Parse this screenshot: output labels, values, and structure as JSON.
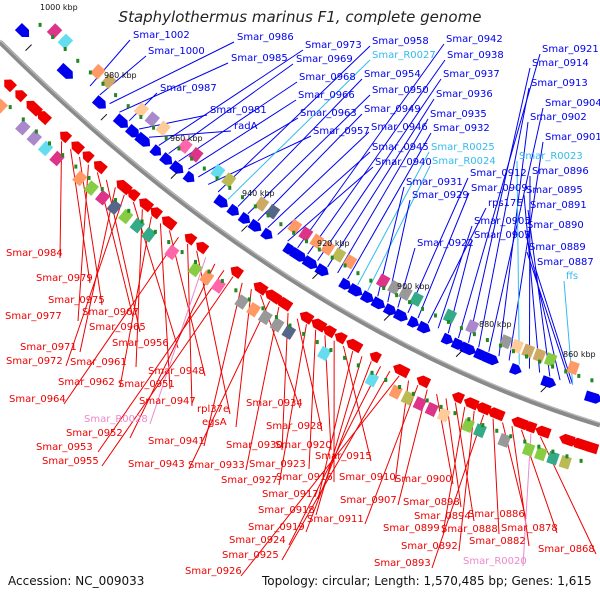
{
  "title": "Staphylothermus marinus F1, complete genome",
  "footer": {
    "accession": "Accession: NC_009033",
    "topology": "Topology: circular; Length: 1,570,485 bp; Genes: 1,615"
  },
  "colors": {
    "forward_cds": "#0000ee",
    "reverse_cds": "#ee0000",
    "forward_rna": "#33bbee",
    "reverse_rna": "#ee88cc",
    "backbone": "#808080",
    "tick": "#228822"
  },
  "scale_labels": [
    "1000 kbp",
    "980 kbp",
    "960 kbp",
    "940 kbp",
    "920 kbp",
    "900 kbp",
    "880 kbp",
    "860 kbp"
  ],
  "forward_labels": [
    "Smar_1002",
    "Smar_1000",
    "Smar_0986",
    "Smar_0985",
    "Smar_0987",
    "Smar_0981",
    "radA",
    "Smar_0973",
    "Smar_0969",
    "Smar_0968",
    "Smar_0966",
    "Smar_0963",
    "Smar_0957",
    "Smar_0958",
    "Smar_R0027",
    "Smar_0954",
    "Smar_0950",
    "Smar_0949",
    "Smar_0946",
    "Smar_0945",
    "Smar_0940",
    "Smar_0942",
    "Smar_0938",
    "Smar_0937",
    "Smar_0936",
    "Smar_0935",
    "Smar_0932",
    "Smar_R0025",
    "Smar_R0024",
    "Smar_0931",
    "Smar_0929",
    "Smar_0922",
    "Smar_0912",
    "Smar_0909",
    "rps17E",
    "Smar_0905",
    "Smar_0903",
    "Smar_0921",
    "Smar_0914",
    "Smar_0913",
    "Smar_0904",
    "Smar_0902",
    "Smar_0901",
    "Smar_R0023",
    "Smar_0896",
    "Smar_0895",
    "Smar_0891",
    "Smar_0890",
    "Smar_0889",
    "Smar_0887",
    "ffs"
  ],
  "reverse_labels": [
    "Smar_0984",
    "Smar_0979",
    "Smar_0975",
    "Smar_0977",
    "Smar_0967",
    "Smar_0965",
    "Smar_0971",
    "Smar_0972",
    "Smar_0956",
    "Smar_0961",
    "Smar_0962",
    "Smar_0951",
    "Smar_0948",
    "Smar_0964",
    "Smar_0947",
    "rpl37e",
    "Smar_R0028",
    "Smar_0952",
    "Smar_0953",
    "Smar_0955",
    "Smar_0941",
    "egsA",
    "Smar_0934",
    "Smar_0943",
    "Smar_0933",
    "Smar_0930",
    "Smar_0928",
    "Smar_0927",
    "Smar_0923",
    "Smar_0920",
    "Smar_0916",
    "Smar_0915",
    "Smar_0917",
    "Smar_0918",
    "Smar_0919",
    "Smar_0924",
    "Smar_0925",
    "Smar_0926",
    "Smar_0910",
    "Smar_0911",
    "Smar_0907",
    "Smar_0900",
    "Smar_0898",
    "Smar_0894",
    "Smar_0899",
    "Smar_0892",
    "Smar_0893",
    "Smar_0888",
    "Smar_0886",
    "Smar_0882",
    "Smar_0878",
    "Smar_R0020",
    "Smar_0868"
  ]
}
